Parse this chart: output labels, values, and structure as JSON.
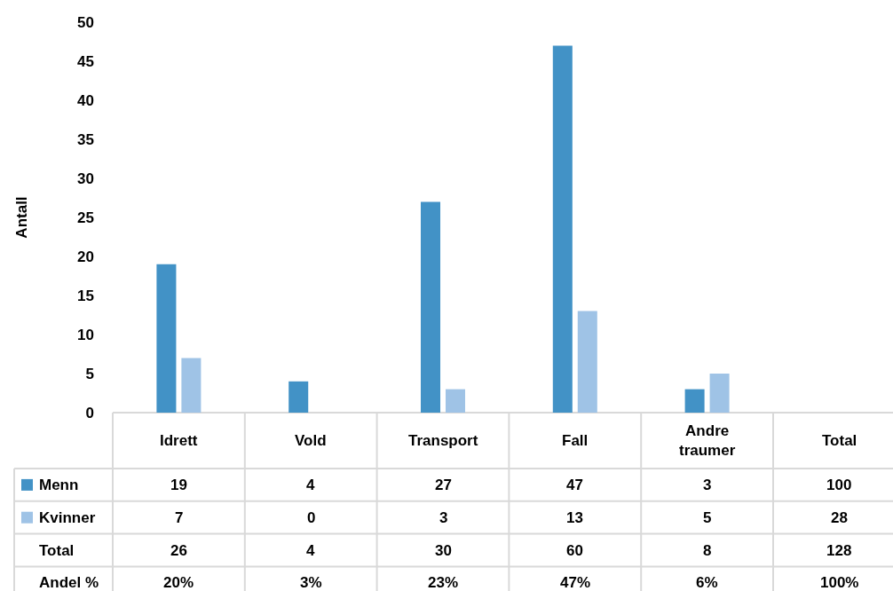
{
  "chart_data": {
    "type": "bar",
    "ylabel": "Antall",
    "categories": [
      "Idrett",
      "Vold",
      "Transport",
      "Fall",
      "Andre traumer",
      "Total"
    ],
    "series": [
      {
        "name": "Menn",
        "color": "#4292c6",
        "values": [
          19,
          4,
          27,
          47,
          3,
          null
        ],
        "value_labels": [
          "19",
          "4",
          "27",
          "47",
          "3",
          "100"
        ]
      },
      {
        "name": "Kvinner",
        "color": "#9fc3e6",
        "values": [
          7,
          0,
          3,
          13,
          5,
          null
        ],
        "value_labels": [
          "7",
          "0",
          "3",
          "13",
          "5",
          "28"
        ]
      }
    ],
    "annotations": [
      "Total",
      "26",
      "4",
      "30",
      "60",
      "8",
      "128",
      "Andel %",
      "20%",
      "3%",
      "23%",
      "47%",
      "6%",
      "100%"
    ],
    "ylim": [
      0,
      50
    ],
    "yticks": [
      0,
      5,
      10,
      15,
      20,
      25,
      30,
      35,
      40,
      45,
      50
    ],
    "legend": "bottom left"
  }
}
